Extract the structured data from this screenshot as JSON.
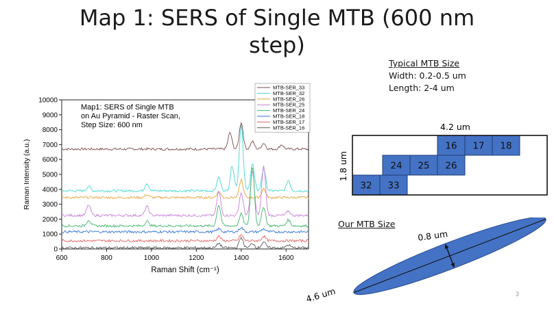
{
  "slide": {
    "title_line1": "Map 1: SERS of Single MTB (600 nm",
    "title_line2": "step)",
    "page_number": "3"
  },
  "size_info": {
    "heading": "Typical MTB Size",
    "width": "Width: 0.2-0.5 um",
    "length": "Length: 2-4 um"
  },
  "grid": {
    "width_label": "4.2 um",
    "height_label": "1.8 um",
    "cells": [
      {
        "label": "16",
        "row": 0,
        "col": 2
      },
      {
        "label": "17",
        "row": 0,
        "col": 3
      },
      {
        "label": "18",
        "row": 0,
        "col": 4
      },
      {
        "label": "24",
        "row": 1,
        "col": 1
      },
      {
        "label": "25",
        "row": 1,
        "col": 2
      },
      {
        "label": "26",
        "row": 1,
        "col": 3
      },
      {
        "label": "32",
        "row": 2,
        "col": 0
      },
      {
        "label": "33",
        "row": 2,
        "col": 1
      }
    ],
    "fill_color": "#4472c4"
  },
  "our_size": {
    "heading": "Our MTB Size",
    "length_label": "4.6 um",
    "width_label": "0.8 um",
    "fill_color": "#4472c4"
  },
  "chart_data": {
    "type": "line",
    "annotation": [
      "Map1: SERS of Single MTB",
      "on Au Pyramid - Raster Scan,",
      "Step Size: 600 nm"
    ],
    "xlabel": "Raman Shift (cm⁻¹)",
    "ylabel": "Raman Intensity (a.u.)",
    "xlim": [
      600,
      1700
    ],
    "ylim": [
      0,
      10000
    ],
    "x_ticks": [
      600,
      800,
      1000,
      1200,
      1400,
      1600
    ],
    "y_ticks": [
      0,
      1000,
      2000,
      3000,
      4000,
      5000,
      6000,
      7000,
      8000,
      9000,
      10000
    ],
    "legend_position": "top-right",
    "series": [
      {
        "name": "MTB-SER_33",
        "color": "#7a4b4b",
        "baseline": 6700,
        "peaks": [
          [
            1350,
            1100
          ],
          [
            1400,
            1800
          ],
          [
            1450,
            500
          ],
          [
            1500,
            400
          ],
          [
            1580,
            300
          ]
        ]
      },
      {
        "name": "MTB-SER_32",
        "color": "#40d8d0",
        "baseline": 3900,
        "peaks": [
          [
            720,
            300
          ],
          [
            980,
            500
          ],
          [
            1300,
            900
          ],
          [
            1360,
            1700
          ],
          [
            1400,
            4500
          ],
          [
            1450,
            1800
          ],
          [
            1500,
            1500
          ],
          [
            1610,
            700
          ]
        ]
      },
      {
        "name": "MTB-SER_26",
        "color": "#e8a23a",
        "baseline": 3450,
        "peaks": [
          [
            980,
            200
          ],
          [
            1300,
            400
          ],
          [
            1400,
            1200
          ],
          [
            1500,
            600
          ]
        ]
      },
      {
        "name": "MTB-SER_25",
        "color": "#c87dd8",
        "baseline": 2250,
        "peaks": [
          [
            720,
            700
          ],
          [
            980,
            600
          ],
          [
            1300,
            1600
          ],
          [
            1400,
            1500
          ],
          [
            1450,
            3000
          ],
          [
            1500,
            3300
          ],
          [
            1610,
            300
          ]
        ]
      },
      {
        "name": "MTB-SER_24",
        "color": "#3bb56b",
        "baseline": 1550,
        "peaks": [
          [
            720,
            400
          ],
          [
            980,
            300
          ],
          [
            1300,
            1400
          ],
          [
            1400,
            800
          ],
          [
            1450,
            4000
          ],
          [
            1500,
            1300
          ],
          [
            1610,
            400
          ]
        ]
      },
      {
        "name": "MTB-SER_18",
        "color": "#2f72d6",
        "baseline": 1150,
        "peaks": [
          [
            1300,
            200
          ],
          [
            1400,
            300
          ],
          [
            1500,
            200
          ]
        ]
      },
      {
        "name": "MTB-SER_17",
        "color": "#e06060",
        "baseline": 550,
        "peaks": [
          [
            1300,
            300
          ],
          [
            1400,
            400
          ],
          [
            1500,
            300
          ]
        ]
      },
      {
        "name": "MTB-SER_16",
        "color": "#555555",
        "baseline": 80,
        "peaks": [
          [
            1300,
            300
          ],
          [
            1400,
            700
          ],
          [
            1450,
            300
          ],
          [
            1500,
            400
          ],
          [
            1610,
            200
          ]
        ]
      }
    ]
  }
}
